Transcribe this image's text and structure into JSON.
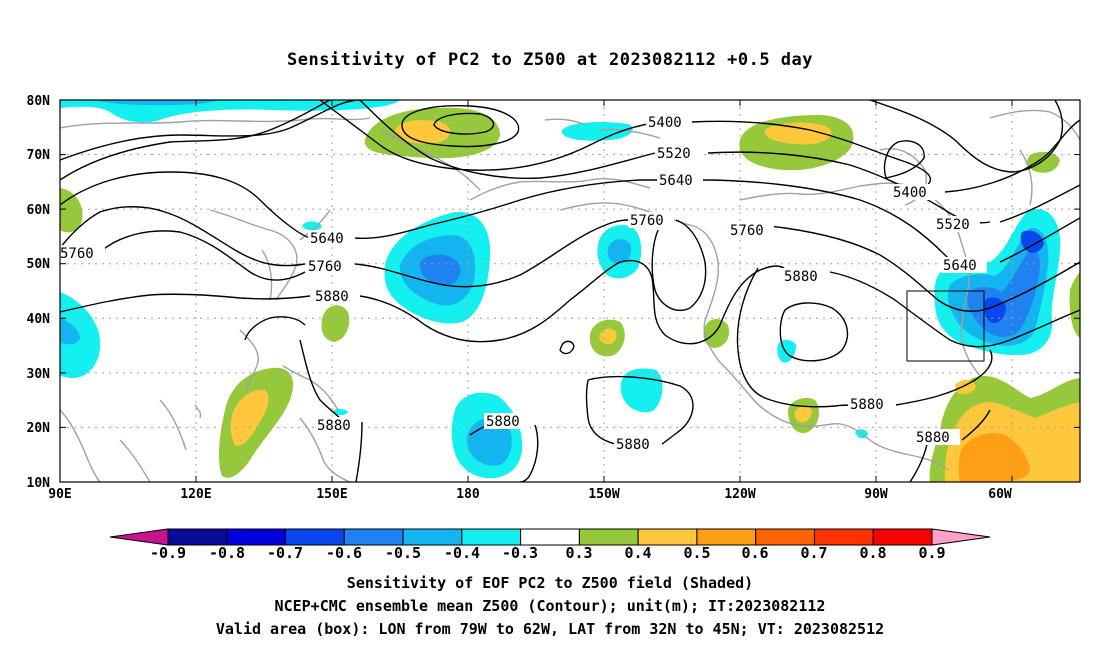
{
  "title": "Sensitivity of PC2 to Z500 at 2023082112 +0.5 day",
  "lat_labels": [
    "80N",
    "70N",
    "60N",
    "50N",
    "40N",
    "30N",
    "20N",
    "10N"
  ],
  "lon_labels": [
    "90E",
    "120E",
    "150E",
    "180",
    "150W",
    "120W",
    "90W",
    "60W"
  ],
  "contour_labels": [
    {
      "text": "5400",
      "id": "c5400a"
    },
    {
      "text": "5520",
      "id": "c5520a"
    },
    {
      "text": "5640",
      "id": "c5640a"
    },
    {
      "text": "5760",
      "id": "c5760a"
    },
    {
      "text": "5760",
      "id": "c5760b"
    },
    {
      "text": "5640",
      "id": "c5640b"
    },
    {
      "text": "5760",
      "id": "c5760c"
    },
    {
      "text": "5880",
      "id": "c5880a"
    },
    {
      "text": "5760",
      "id": "c5760d"
    },
    {
      "text": "5880",
      "id": "c5880b"
    },
    {
      "text": "5400",
      "id": "c5400b"
    },
    {
      "text": "5520",
      "id": "c5520b"
    },
    {
      "text": "5640",
      "id": "c5640c"
    },
    {
      "text": "5880",
      "id": "c5880c"
    },
    {
      "text": "5880",
      "id": "c5880d"
    },
    {
      "text": "5880",
      "id": "c5880e"
    },
    {
      "text": "5880",
      "id": "c5880f"
    },
    {
      "text": "5880",
      "id": "c5880g"
    }
  ],
  "colorbar": {
    "colors": [
      "#0a0a96",
      "#0000dc",
      "#0a46f0",
      "#1e82f0",
      "#14b4f0",
      "#14f0f0",
      "#ffffff",
      "#96c83c",
      "#ffc83c",
      "#ffa014",
      "#ff6400",
      "#ff3200",
      "#fa0000"
    ],
    "left_triangle": "#c8148c",
    "right_triangle": "#ffa0c8",
    "labels": [
      "-0.9",
      "-0.8",
      "-0.7",
      "-0.6",
      "-0.5",
      "-0.4",
      "-0.3",
      "0.3",
      "0.4",
      "0.5",
      "0.6",
      "0.7",
      "0.8",
      "0.9"
    ]
  },
  "captions": {
    "line1": "Sensitivity of EOF PC2 to Z500 field (Shaded)",
    "line2": "NCEP+CMC ensemble mean Z500 (Contour); unit(m); IT:2023082112",
    "line3": "Valid area (box): LON from 79W to 62W, LAT from 32N to 45N; VT: 2023082512"
  }
}
